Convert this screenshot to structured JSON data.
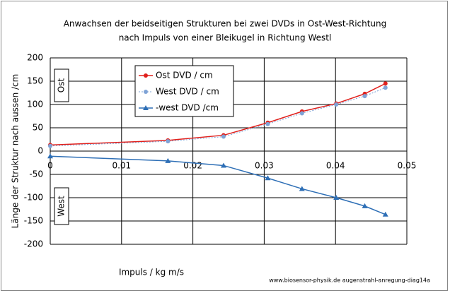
{
  "chart_data": {
    "type": "line",
    "title": [
      "Anwachsen der beidseitigen Strukturen bei zwei DVDs in Ost-West-Richtung",
      "nach Impuls von einer Bleikugel in Richtung Westl"
    ],
    "x_label": "Impuls  /    kg m/s",
    "y_label": "Länge der Struktur nach aussen /cm",
    "annotations": [
      "Ost",
      "West"
    ],
    "footer": "www.biosensor-physik.de augenstrahl-anregung-diag14a",
    "x": [
      0,
      0.0165,
      0.0243,
      0.0305,
      0.0353,
      0.0401,
      0.0441,
      0.047
    ],
    "series": [
      {
        "name": "Ost DVD / cm",
        "color": "#e0201c",
        "marker": "circle",
        "dashed": false,
        "values": [
          13,
          23,
          34,
          61,
          85,
          102,
          123,
          145
        ]
      },
      {
        "name": "West DVD / cm",
        "color": "#7fa3d6",
        "marker": "circle",
        "dashed": true,
        "values": [
          11,
          21,
          31,
          58,
          81,
          100,
          118,
          136
        ]
      },
      {
        "name": "-west DVD /cm",
        "color": "#2e6fb6",
        "marker": "triangle",
        "dashed": false,
        "values": [
          -11,
          -21,
          -31,
          -58,
          -81,
          -100,
          -118,
          -136
        ]
      }
    ],
    "xlim": [
      0,
      0.05
    ],
    "xticks": [
      0,
      0.01,
      0.02,
      0.03,
      0.04,
      0.05
    ],
    "ylim": [
      -200,
      200
    ],
    "yticks": [
      -200,
      -150,
      -100,
      -50,
      0,
      50,
      100,
      150,
      200
    ],
    "grid": true
  }
}
